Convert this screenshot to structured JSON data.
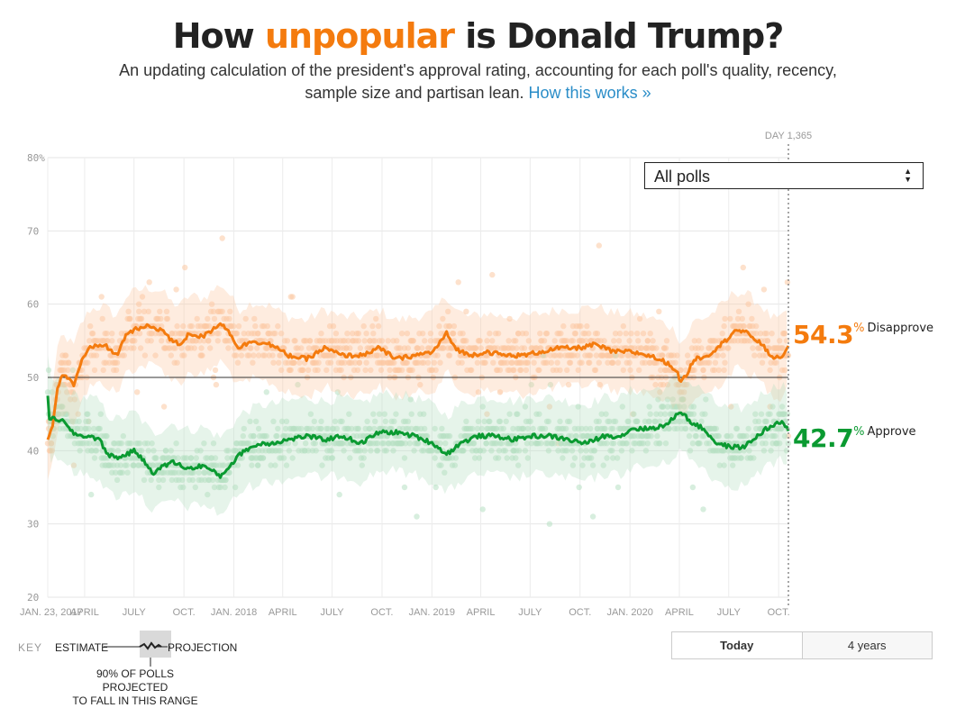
{
  "header": {
    "title_prefix": "How ",
    "title_accent": "unpopular",
    "title_suffix": " is Donald Trump?",
    "subtitle": "An updating calculation of the president's approval rating, accounting for each poll's quality, recency, sample size and partisan lean.",
    "how_link": "How this works »"
  },
  "controls": {
    "poll_filter_selected": "All polls",
    "range_buttons": [
      {
        "label": "Today",
        "active": true
      },
      {
        "label": "4 years",
        "active": false
      }
    ]
  },
  "day_label": "DAY 1,365",
  "readouts": {
    "disapprove": {
      "value": "54.3",
      "pct": "%",
      "label": "Disapprove"
    },
    "approve": {
      "value": "42.7",
      "pct": "%",
      "label": "Approve"
    }
  },
  "key": {
    "key_label": "KEY",
    "estimate": "ESTIMATE",
    "projection": "PROJECTION",
    "note_line1": "90% OF POLLS PROJECTED",
    "note_line2": "TO FALL IN THIS RANGE"
  },
  "colors": {
    "disapprove": "#f47b0e",
    "approve": "#0a9a31",
    "disapprove_light": "#fcc9a2",
    "approve_light": "#b6e0c3",
    "link": "#2a8dc8"
  },
  "chart_data": {
    "type": "line",
    "title": "How unpopular is Donald Trump?",
    "xlabel": "",
    "ylabel": "",
    "x_unit": "day since Jan. 23, 2017",
    "xlim": [
      0,
      1365
    ],
    "ylim": [
      20,
      80
    ],
    "y_ticks": [
      "80%",
      "70",
      "60",
      "50",
      "40",
      "30",
      "20"
    ],
    "y_tick_values": [
      80,
      70,
      60,
      50,
      40,
      30,
      20
    ],
    "reference_line": 50,
    "grid": true,
    "x_ticks": [
      {
        "label": "JAN. 23, 2017",
        "day": 0
      },
      {
        "label": "APRIL",
        "day": 68
      },
      {
        "label": "JULY",
        "day": 159
      },
      {
        "label": "OCT.",
        "day": 251
      },
      {
        "label": "JAN. 2018",
        "day": 343
      },
      {
        "label": "APRIL",
        "day": 433
      },
      {
        "label": "JULY",
        "day": 524
      },
      {
        "label": "OCT.",
        "day": 616
      },
      {
        "label": "JAN. 2019",
        "day": 708
      },
      {
        "label": "APRIL",
        "day": 798
      },
      {
        "label": "JULY",
        "day": 889
      },
      {
        "label": "OCT.",
        "day": 981
      },
      {
        "label": "JAN. 2020",
        "day": 1073
      },
      {
        "label": "APRIL",
        "day": 1164
      },
      {
        "label": "JULY",
        "day": 1255
      },
      {
        "label": "OCT.",
        "day": 1347
      }
    ],
    "series": [
      {
        "name": "Disapprove",
        "color": "#f47b0e",
        "points": [
          [
            0,
            41.5
          ],
          [
            8,
            43
          ],
          [
            17,
            48
          ],
          [
            25,
            50.5
          ],
          [
            37,
            50
          ],
          [
            48,
            49
          ],
          [
            61,
            52
          ],
          [
            78,
            54
          ],
          [
            103,
            54.5
          ],
          [
            128,
            53
          ],
          [
            145,
            56
          ],
          [
            161,
            56.5
          ],
          [
            186,
            57
          ],
          [
            211,
            56.5
          ],
          [
            228,
            55
          ],
          [
            244,
            54.5
          ],
          [
            261,
            56
          ],
          [
            286,
            55.5
          ],
          [
            319,
            57.5
          ],
          [
            336,
            56
          ],
          [
            352,
            54
          ],
          [
            377,
            55
          ],
          [
            410,
            54.5
          ],
          [
            444,
            53
          ],
          [
            477,
            52.5
          ],
          [
            510,
            54
          ],
          [
            543,
            53
          ],
          [
            577,
            53
          ],
          [
            610,
            54
          ],
          [
            643,
            52.5
          ],
          [
            676,
            53
          ],
          [
            710,
            53.5
          ],
          [
            735,
            56
          ],
          [
            751,
            54
          ],
          [
            776,
            53
          ],
          [
            810,
            53.5
          ],
          [
            843,
            53
          ],
          [
            876,
            53
          ],
          [
            909,
            53.5
          ],
          [
            942,
            54
          ],
          [
            976,
            54
          ],
          [
            1009,
            54.5
          ],
          [
            1042,
            53.5
          ],
          [
            1075,
            53.5
          ],
          [
            1108,
            53
          ],
          [
            1141,
            52
          ],
          [
            1158,
            51
          ],
          [
            1166,
            49.5
          ],
          [
            1175,
            50
          ],
          [
            1191,
            52.5
          ],
          [
            1216,
            53
          ],
          [
            1249,
            55
          ],
          [
            1266,
            56.5
          ],
          [
            1291,
            56
          ],
          [
            1316,
            54.5
          ],
          [
            1332,
            53
          ],
          [
            1349,
            52.5
          ],
          [
            1365,
            54.3
          ]
        ]
      },
      {
        "name": "Approve",
        "color": "#0a9a31",
        "points": [
          [
            0,
            47.5
          ],
          [
            3,
            44
          ],
          [
            12,
            44.5
          ],
          [
            28,
            44
          ],
          [
            45,
            42.5
          ],
          [
            61,
            42
          ],
          [
            78,
            42
          ],
          [
            95,
            41.5
          ],
          [
            111,
            39.5
          ],
          [
            128,
            39
          ],
          [
            161,
            40
          ],
          [
            194,
            37
          ],
          [
            228,
            38.5
          ],
          [
            261,
            37.5
          ],
          [
            286,
            38
          ],
          [
            319,
            36.5
          ],
          [
            336,
            38
          ],
          [
            361,
            40
          ],
          [
            394,
            41
          ],
          [
            410,
            41
          ],
          [
            444,
            41.5
          ],
          [
            477,
            42
          ],
          [
            510,
            41.5
          ],
          [
            543,
            42
          ],
          [
            577,
            41
          ],
          [
            610,
            42.5
          ],
          [
            643,
            42.5
          ],
          [
            676,
            42
          ],
          [
            710,
            41
          ],
          [
            735,
            39.5
          ],
          [
            760,
            41
          ],
          [
            793,
            42
          ],
          [
            826,
            42
          ],
          [
            859,
            41.5
          ],
          [
            892,
            42
          ],
          [
            926,
            42
          ],
          [
            959,
            41.5
          ],
          [
            992,
            41
          ],
          [
            1025,
            42
          ],
          [
            1058,
            42
          ],
          [
            1075,
            43
          ],
          [
            1108,
            43
          ],
          [
            1141,
            43.5
          ],
          [
            1166,
            45.5
          ],
          [
            1183,
            44
          ],
          [
            1208,
            43
          ],
          [
            1233,
            41
          ],
          [
            1258,
            40.5
          ],
          [
            1283,
            40.5
          ],
          [
            1308,
            42
          ],
          [
            1324,
            43
          ],
          [
            1341,
            43.5
          ],
          [
            1354,
            44
          ],
          [
            1365,
            42.7
          ]
        ]
      }
    ],
    "legend": {
      "placement": "right",
      "entries": [
        "54.3% Disapprove",
        "42.7% Approve"
      ]
    },
    "annotations": [
      "DAY 1,365"
    ]
  }
}
